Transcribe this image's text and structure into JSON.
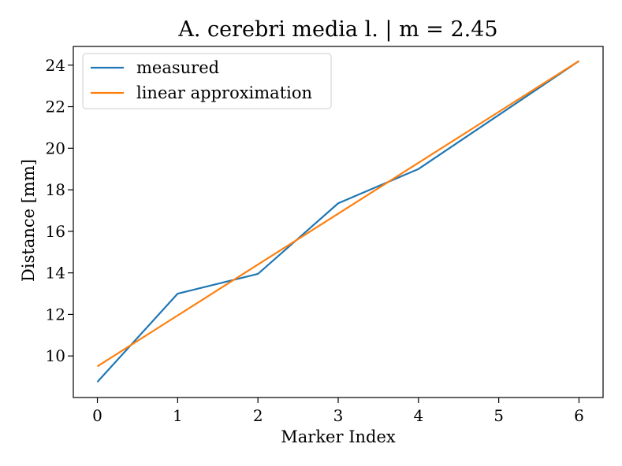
{
  "chart_data": {
    "type": "line",
    "title": "A. cerebri media l. | m = 2.45",
    "xlabel": "Marker Index",
    "ylabel": "Distance [mm]",
    "x": [
      0,
      1,
      2,
      3,
      4,
      5,
      6
    ],
    "xlim": [
      -0.3,
      6.3
    ],
    "ylim": [
      8.0,
      24.9
    ],
    "xticks": [
      0,
      1,
      2,
      3,
      4,
      5,
      6
    ],
    "yticks": [
      10,
      12,
      14,
      16,
      18,
      20,
      22,
      24
    ],
    "legend_position": "upper-left",
    "grid": false,
    "series": [
      {
        "name": "measured",
        "color": "#1f77b4",
        "values": [
          8.75,
          13.0,
          13.95,
          17.35,
          19.0,
          21.6,
          24.2
        ]
      },
      {
        "name": "linear approximation",
        "color": "#ff7f0e",
        "values": [
          9.5,
          11.95,
          14.4,
          16.85,
          19.3,
          21.75,
          24.2
        ]
      }
    ]
  }
}
